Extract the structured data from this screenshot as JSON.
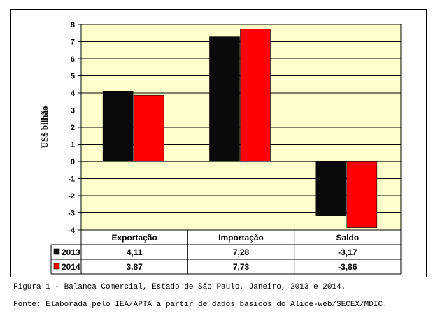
{
  "chart_data": {
    "type": "bar",
    "categories": [
      "Exportação",
      "Importação",
      "Saldo"
    ],
    "series": [
      {
        "name": "2013",
        "values": [
          4.11,
          7.28,
          -3.17
        ],
        "color": "#0a0a0a"
      },
      {
        "name": "2014",
        "values": [
          3.87,
          7.73,
          -3.86
        ],
        "color": "#ff0000"
      }
    ],
    "value_labels": [
      [
        "4,11",
        "7,28",
        "-3,17"
      ],
      [
        "3,87",
        "7,73",
        "-3,86"
      ]
    ],
    "yticks": [
      "8",
      "7",
      "6",
      "5",
      "4",
      "3",
      "2",
      "1",
      "0",
      "-1",
      "-2",
      "-3",
      "-4"
    ],
    "ylim": [
      -4,
      8
    ],
    "ylabel": "US$ bilhão",
    "xlabel": "",
    "title": "",
    "grid": true,
    "legend": "data-table",
    "plot_background": "#ffffcc"
  },
  "captions": {
    "figure": "Figura 1 - Balança Comercial, Estado de São Paulo, Janeiro, 2013 e 2014.",
    "source": "Fonte: Elaborada pelo IEA/APTA a partir de dados básicos do Alice-web/SECEX/MDIC."
  }
}
